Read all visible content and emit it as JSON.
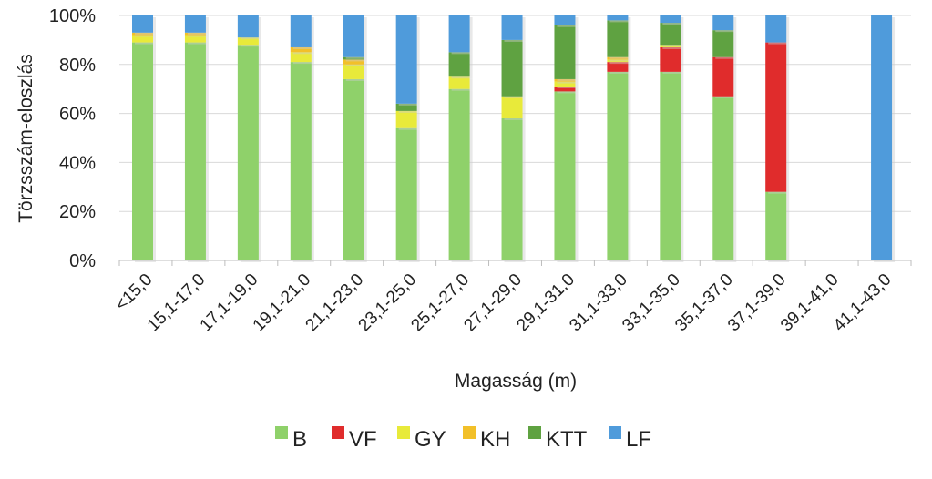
{
  "chart_data": {
    "type": "bar",
    "stacked": true,
    "normalized": true,
    "title": "",
    "xlabel": "Magasság (m)",
    "ylabel": "Törzsszám-eloszlás",
    "ylim": [
      0,
      100
    ],
    "yticks": [
      "0%",
      "20%",
      "40%",
      "60%",
      "80%",
      "100%"
    ],
    "grid": true,
    "legend_position": "bottom",
    "categories": [
      "<15,0",
      "15,1-17,0",
      "17,1-19,0",
      "19,1-21,0",
      "21,1-23,0",
      "23,1-25,0",
      "25,1-27,0",
      "27,1-29,0",
      "29,1-31,0",
      "31,1-33,0",
      "33,1-35,0",
      "35,1-37,0",
      "37,1-39,0",
      "39,1-41,0",
      "41,1-43,0"
    ],
    "series": [
      {
        "name": "B",
        "color": "#8fd16a",
        "values": [
          89,
          89,
          88,
          81,
          74,
          54,
          70,
          58,
          69,
          77,
          77,
          67,
          28,
          0,
          0
        ]
      },
      {
        "name": "VF",
        "color": "#e02c2c",
        "values": [
          0,
          0,
          0,
          0,
          0,
          0,
          0,
          0,
          2,
          4,
          10,
          16,
          61,
          0,
          0
        ]
      },
      {
        "name": "GY",
        "color": "#e8ea3a",
        "values": [
          3,
          3,
          3,
          4,
          6,
          7,
          5,
          9,
          2,
          1,
          1,
          0,
          0,
          0,
          0
        ]
      },
      {
        "name": "KH",
        "color": "#f2c029",
        "values": [
          1,
          1,
          0,
          2,
          2,
          0,
          0,
          0,
          1,
          1,
          0,
          0,
          0,
          0,
          0
        ]
      },
      {
        "name": "KTT",
        "color": "#5fa241",
        "values": [
          0,
          0,
          0,
          0,
          1,
          3,
          10,
          23,
          22,
          15,
          9,
          11,
          0,
          0,
          0
        ]
      },
      {
        "name": "LF",
        "color": "#4f9bdb",
        "values": [
          7,
          7,
          9,
          13,
          17,
          36,
          15,
          10,
          4,
          2,
          3,
          6,
          11,
          0,
          100
        ]
      }
    ]
  }
}
